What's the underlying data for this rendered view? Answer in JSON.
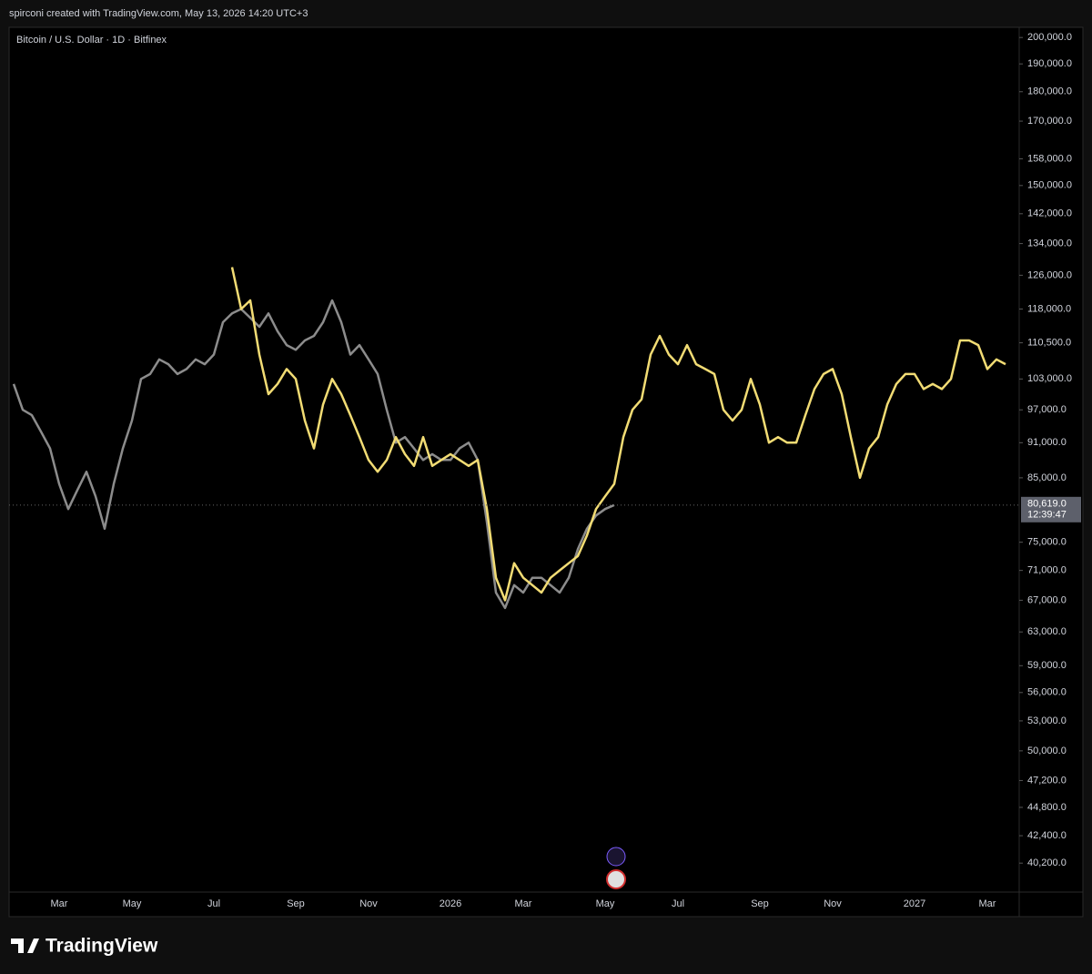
{
  "header": {
    "text": "spirconi created with TradingView.com, May 13, 2026 14:20 UTC+3"
  },
  "footer": {
    "brand": "TradingView"
  },
  "chart_data": {
    "type": "line",
    "title": "Bitcoin / U.S. Dollar · 1D · Bitfinex",
    "log_scale": true,
    "categories": [
      null,
      null,
      null,
      null,
      null,
      "Mar",
      null,
      null,
      null,
      null,
      null,
      null,
      null,
      "May",
      null,
      null,
      null,
      null,
      null,
      null,
      null,
      null,
      "Jul",
      null,
      null,
      null,
      null,
      null,
      null,
      null,
      null,
      "Sep",
      null,
      null,
      null,
      null,
      null,
      null,
      null,
      "Nov",
      null,
      null,
      null,
      null,
      null,
      null,
      null,
      null,
      "2026",
      null,
      null,
      null,
      null,
      null,
      null,
      null,
      "Mar",
      null,
      null,
      null,
      null,
      null,
      null,
      null,
      null,
      "May",
      null,
      null,
      null,
      null,
      null,
      null,
      null,
      "Jul",
      null,
      null,
      null,
      null,
      null,
      null,
      null,
      null,
      "Sep",
      null,
      null,
      null,
      null,
      null,
      null,
      null,
      "Nov",
      null,
      null,
      null,
      null,
      null,
      null,
      null,
      null,
      "2027",
      null,
      null,
      null,
      null,
      null,
      null,
      null,
      "Mar",
      null,
      null,
      null
    ],
    "series": [
      {
        "color": "#8c8c8c",
        "values": [
          102000,
          97000,
          96000,
          93000,
          90000,
          84000,
          80000,
          83000,
          86000,
          82000,
          77000,
          84000,
          90000,
          95000,
          103000,
          104000,
          107000,
          106000,
          104000,
          105000,
          107000,
          106000,
          108000,
          115000,
          117000,
          118000,
          116000,
          114000,
          117000,
          113000,
          110000,
          109000,
          111000,
          112000,
          115000,
          120000,
          115000,
          108000,
          110000,
          107000,
          104000,
          97000,
          91000,
          92000,
          90000,
          88000,
          89000,
          88000,
          88000,
          90000,
          91000,
          88000,
          78000,
          68000,
          66000,
          69000,
          68000,
          70000,
          70000,
          69000,
          68000,
          70000,
          74000,
          77000,
          79000,
          80000,
          80600,
          null,
          null,
          null,
          null,
          null,
          null,
          null,
          null,
          null,
          null,
          null,
          null,
          null,
          null,
          null,
          null,
          null,
          null,
          null,
          null,
          null,
          null,
          null,
          null,
          null,
          null,
          null,
          null,
          null,
          null,
          null,
          null,
          null,
          null,
          null,
          null,
          null,
          null,
          null,
          null,
          null,
          null,
          null,
          null
        ]
      },
      {
        "color": "#f2dc74",
        "values": [
          null,
          null,
          null,
          null,
          null,
          null,
          null,
          null,
          null,
          null,
          null,
          null,
          null,
          null,
          null,
          null,
          null,
          null,
          null,
          null,
          null,
          null,
          null,
          null,
          128000,
          118000,
          120000,
          108000,
          100000,
          102000,
          105000,
          103000,
          95000,
          90000,
          98000,
          103000,
          100000,
          96000,
          92000,
          88000,
          86000,
          88000,
          92000,
          89000,
          87000,
          92000,
          87000,
          88000,
          89000,
          88000,
          87000,
          88000,
          80000,
          70000,
          67000,
          72000,
          70000,
          69000,
          68000,
          70000,
          71000,
          72000,
          73000,
          76000,
          80000,
          82000,
          84000,
          92000,
          97000,
          99000,
          108000,
          112000,
          108000,
          106000,
          110000,
          106000,
          105000,
          104000,
          97000,
          95000,
          97000,
          103000,
          98000,
          91000,
          92000,
          91000,
          91000,
          96000,
          101000,
          104000,
          105000,
          100000,
          92000,
          85000,
          90000,
          92000,
          98000,
          102000,
          104000,
          104000,
          101000,
          102000,
          101000,
          103000,
          111000,
          111000,
          110000,
          105000,
          107000,
          106000,
          null
        ]
      }
    ],
    "ylim": [
      38000,
      204000
    ],
    "yticks": [
      {
        "value": 200000,
        "label": "200,000.0"
      },
      {
        "value": 190000,
        "label": "190,000.0"
      },
      {
        "value": 180000,
        "label": "180,000.0"
      },
      {
        "value": 170000,
        "label": "170,000.0"
      },
      {
        "value": 158000,
        "label": "158,000.0"
      },
      {
        "value": 150000,
        "label": "150,000.0"
      },
      {
        "value": 142000,
        "label": "142,000.0"
      },
      {
        "value": 134000,
        "label": "134,000.0"
      },
      {
        "value": 126000,
        "label": "126,000.0"
      },
      {
        "value": 118000,
        "label": "118,000.0"
      },
      {
        "value": 110500,
        "label": "110,500.0"
      },
      {
        "value": 103000,
        "label": "103,000.0"
      },
      {
        "value": 97000,
        "label": "97,000.0"
      },
      {
        "value": 91000,
        "label": "91,000.0"
      },
      {
        "value": 85000,
        "label": "85,000.0"
      },
      {
        "value": 75000,
        "label": "75,000.0"
      },
      {
        "value": 71000,
        "label": "71,000.0"
      },
      {
        "value": 67000,
        "label": "67,000.0"
      },
      {
        "value": 63000,
        "label": "63,000.0"
      },
      {
        "value": 59000,
        "label": "59,000.0"
      },
      {
        "value": 56000,
        "label": "56,000.0"
      },
      {
        "value": 53000,
        "label": "53,000.0"
      },
      {
        "value": 50000,
        "label": "50,000.0"
      },
      {
        "value": 47200,
        "label": "47,200.0"
      },
      {
        "value": 44800,
        "label": "44,800.0"
      },
      {
        "value": 42400,
        "label": "42,400.0"
      },
      {
        "value": 40200,
        "label": "40,200.0"
      }
    ],
    "last_price": {
      "value": 80619,
      "label": "80,619.0"
    },
    "countdown": "12:39:47"
  }
}
